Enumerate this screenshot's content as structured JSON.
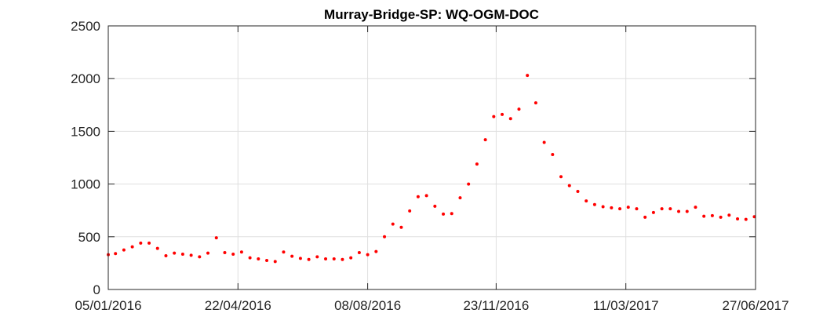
{
  "chart_data": {
    "type": "scatter",
    "title": "Murray-Bridge-SP: WQ-OGM-DOC",
    "xlabel": "",
    "ylabel": "",
    "x_axis_type": "date",
    "xlim": [
      "2016-01-05",
      "2017-06-27"
    ],
    "ylim": [
      0,
      2500
    ],
    "x_ticks": [
      "2016-01-05",
      "2016-04-22",
      "2016-08-08",
      "2016-11-23",
      "2017-03-11",
      "2017-06-27"
    ],
    "x_tick_labels": [
      "05/01/2016",
      "22/04/2016",
      "08/08/2016",
      "23/11/2016",
      "11/03/2017",
      "27/06/2017"
    ],
    "y_ticks": [
      0,
      500,
      1000,
      1500,
      2000,
      2500
    ],
    "y_tick_labels": [
      "0",
      "500",
      "1000",
      "1500",
      "2000",
      "2500"
    ],
    "grid": true,
    "marker_color": "#ff0000",
    "series": [
      {
        "points": [
          [
            "2016-01-05",
            330
          ],
          [
            "2016-01-11",
            340
          ],
          [
            "2016-01-18",
            375
          ],
          [
            "2016-01-25",
            405
          ],
          [
            "2016-02-01",
            440
          ],
          [
            "2016-02-08",
            440
          ],
          [
            "2016-02-15",
            390
          ],
          [
            "2016-02-22",
            320
          ],
          [
            "2016-02-29",
            345
          ],
          [
            "2016-03-07",
            335
          ],
          [
            "2016-03-14",
            325
          ],
          [
            "2016-03-21",
            310
          ],
          [
            "2016-03-28",
            345
          ],
          [
            "2016-04-04",
            490
          ],
          [
            "2016-04-11",
            350
          ],
          [
            "2016-04-18",
            335
          ],
          [
            "2016-04-25",
            355
          ],
          [
            "2016-05-02",
            300
          ],
          [
            "2016-05-09",
            290
          ],
          [
            "2016-05-16",
            275
          ],
          [
            "2016-05-23",
            265
          ],
          [
            "2016-05-30",
            355
          ],
          [
            "2016-06-06",
            315
          ],
          [
            "2016-06-13",
            295
          ],
          [
            "2016-06-20",
            285
          ],
          [
            "2016-06-27",
            310
          ],
          [
            "2016-07-04",
            290
          ],
          [
            "2016-07-11",
            290
          ],
          [
            "2016-07-18",
            285
          ],
          [
            "2016-07-25",
            300
          ],
          [
            "2016-08-01",
            350
          ],
          [
            "2016-08-08",
            330
          ],
          [
            "2016-08-15",
            360
          ],
          [
            "2016-08-22",
            500
          ],
          [
            "2016-08-29",
            620
          ],
          [
            "2016-09-05",
            590
          ],
          [
            "2016-09-12",
            745
          ],
          [
            "2016-09-19",
            880
          ],
          [
            "2016-09-26",
            890
          ],
          [
            "2016-10-03",
            790
          ],
          [
            "2016-10-10",
            715
          ],
          [
            "2016-10-17",
            720
          ],
          [
            "2016-10-24",
            870
          ],
          [
            "2016-10-31",
            1000
          ],
          [
            "2016-11-07",
            1190
          ],
          [
            "2016-11-14",
            1420
          ],
          [
            "2016-11-21",
            1640
          ],
          [
            "2016-11-28",
            1660
          ],
          [
            "2016-12-05",
            1620
          ],
          [
            "2016-12-12",
            1710
          ],
          [
            "2016-12-19",
            2030
          ],
          [
            "2016-12-26",
            1770
          ],
          [
            "2017-01-02",
            1395
          ],
          [
            "2017-01-09",
            1280
          ],
          [
            "2017-01-16",
            1070
          ],
          [
            "2017-01-23",
            985
          ],
          [
            "2017-01-30",
            930
          ],
          [
            "2017-02-06",
            840
          ],
          [
            "2017-02-13",
            805
          ],
          [
            "2017-02-20",
            785
          ],
          [
            "2017-02-27",
            775
          ],
          [
            "2017-03-06",
            765
          ],
          [
            "2017-03-13",
            780
          ],
          [
            "2017-03-20",
            765
          ],
          [
            "2017-03-27",
            685
          ],
          [
            "2017-04-03",
            730
          ],
          [
            "2017-04-10",
            765
          ],
          [
            "2017-04-17",
            765
          ],
          [
            "2017-04-24",
            740
          ],
          [
            "2017-05-01",
            740
          ],
          [
            "2017-05-08",
            780
          ],
          [
            "2017-05-15",
            695
          ],
          [
            "2017-05-22",
            700
          ],
          [
            "2017-05-29",
            685
          ],
          [
            "2017-06-05",
            705
          ],
          [
            "2017-06-12",
            670
          ],
          [
            "2017-06-19",
            665
          ],
          [
            "2017-06-26",
            690
          ]
        ]
      }
    ]
  }
}
